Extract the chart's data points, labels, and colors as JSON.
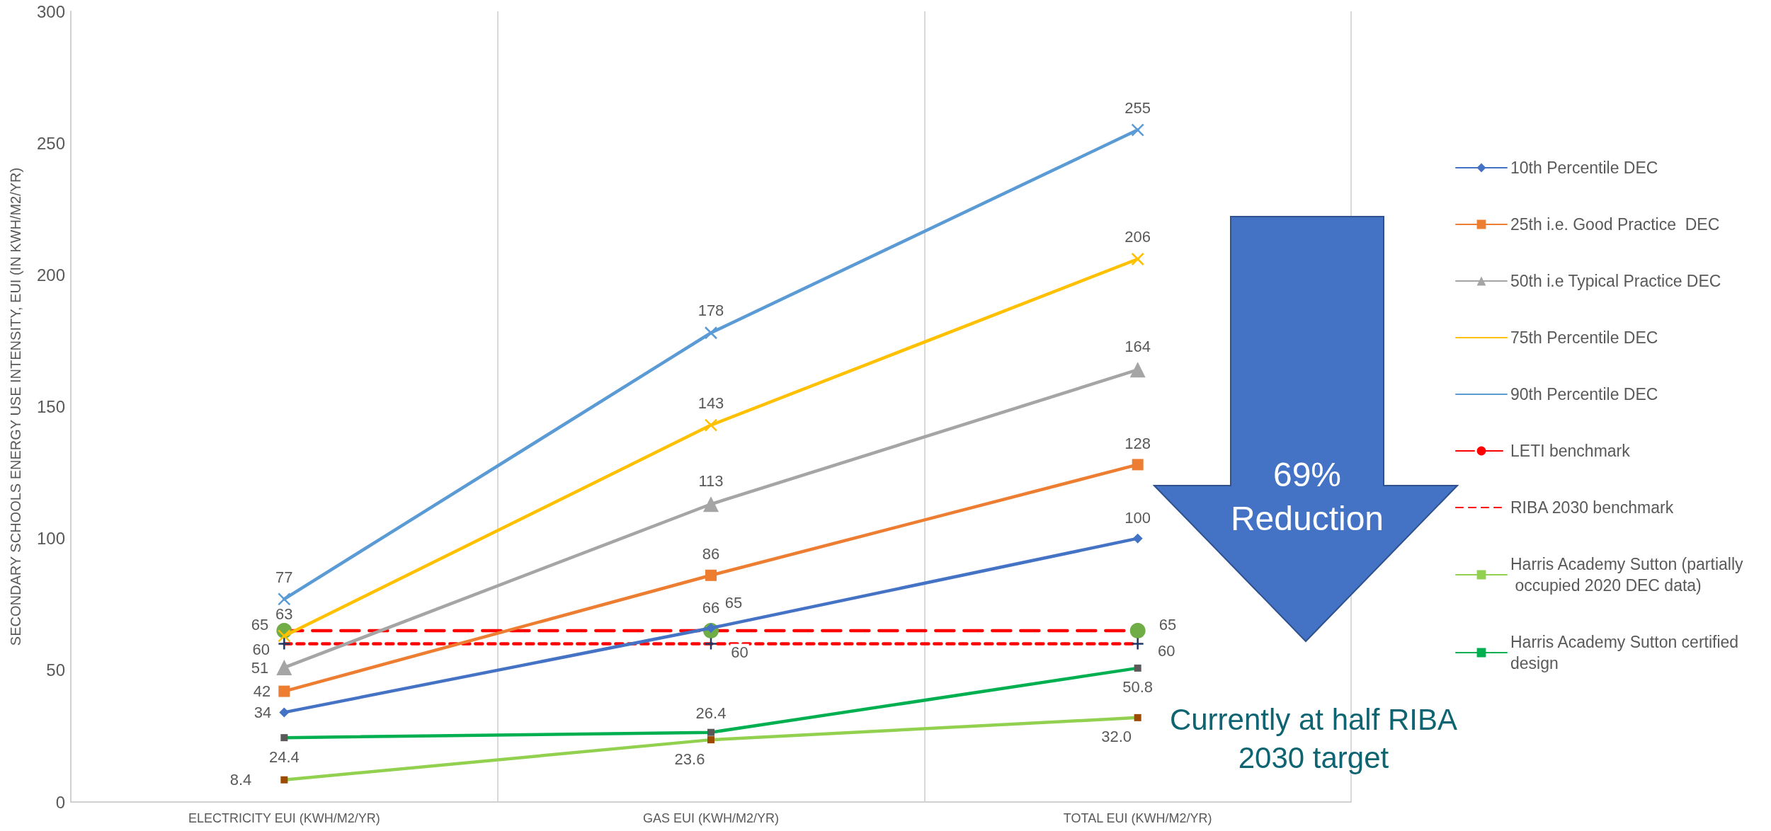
{
  "chart_data": {
    "type": "line",
    "ylabel": "SECONDARY SCHOOLS ENERGY USE INTENSITY, EUI (IN KWH/M2/YR)",
    "categories": [
      "ELECTRICITY EUI (KWH/M2/YR)",
      "GAS EUI (KWH/M2/YR)",
      "TOTAL EUI (KWH/M2/YR)"
    ],
    "series": [
      {
        "name": "10th Percentile DEC",
        "color": "#4472c4",
        "values": [
          34,
          66,
          100
        ],
        "marker": "diamond"
      },
      {
        "name": "25th i.e. Good Practice  DEC",
        "color": "#ed7d31",
        "values": [
          42,
          86,
          128
        ],
        "marker": "square"
      },
      {
        "name": "50th i.e Typical Practice DEC",
        "color": "#a5a5a5",
        "values": [
          51,
          113,
          164
        ],
        "marker": "triangle"
      },
      {
        "name": "75th Percentile DEC",
        "color": "#ffc000",
        "values": [
          63,
          143,
          206
        ],
        "marker": "cross"
      },
      {
        "name": "90th Percentile DEC",
        "color": "#5b9bd5",
        "values": [
          77,
          178,
          255
        ],
        "marker": "cross"
      },
      {
        "name": "LETI benchmark",
        "color": "#ff0000",
        "values": [
          65,
          65,
          65
        ],
        "marker": "circle",
        "line_style": "dashed",
        "colors": [
          "#70ad47",
          "#70ad47",
          "#70ad47"
        ]
      },
      {
        "name": "RIBA 2030 benchmark",
        "color": "#ff0000",
        "values": [
          60,
          60,
          60
        ],
        "marker": "cross",
        "line_style": "dashed",
        "colors": [
          "#1f3864",
          "#1f3864",
          "#1f3864"
        ]
      },
      {
        "name": "Harris Academy Sutton (partially occupied 2020 DEC data)",
        "color": "#92d050",
        "values": [
          8.4,
          23.6,
          32.0
        ],
        "marker": "square",
        "colors": [
          "#9c4a00",
          "#9c4a00",
          "#9c4a00"
        ],
        "value_labels": [
          "8.4",
          "23.6",
          "32.0"
        ]
      },
      {
        "name": "Harris Academy Sutton certified design",
        "color": "#00b050",
        "values": [
          24.4,
          26.4,
          50.8
        ],
        "marker": "square",
        "colors": [
          "#595959",
          "#595959",
          "#595959"
        ],
        "value_labels": [
          "24.4",
          "26.4",
          "50.8"
        ]
      }
    ],
    "ylim": [
      0,
      300
    ],
    "yticks": [
      0,
      50,
      100,
      150,
      200,
      250,
      300
    ],
    "grid": "x",
    "legend": "right",
    "line_style": "solid",
    "data_labels": true,
    "annotations": [
      "69% Reduction",
      "Currently at half RIBA 2030 target"
    ]
  }
}
